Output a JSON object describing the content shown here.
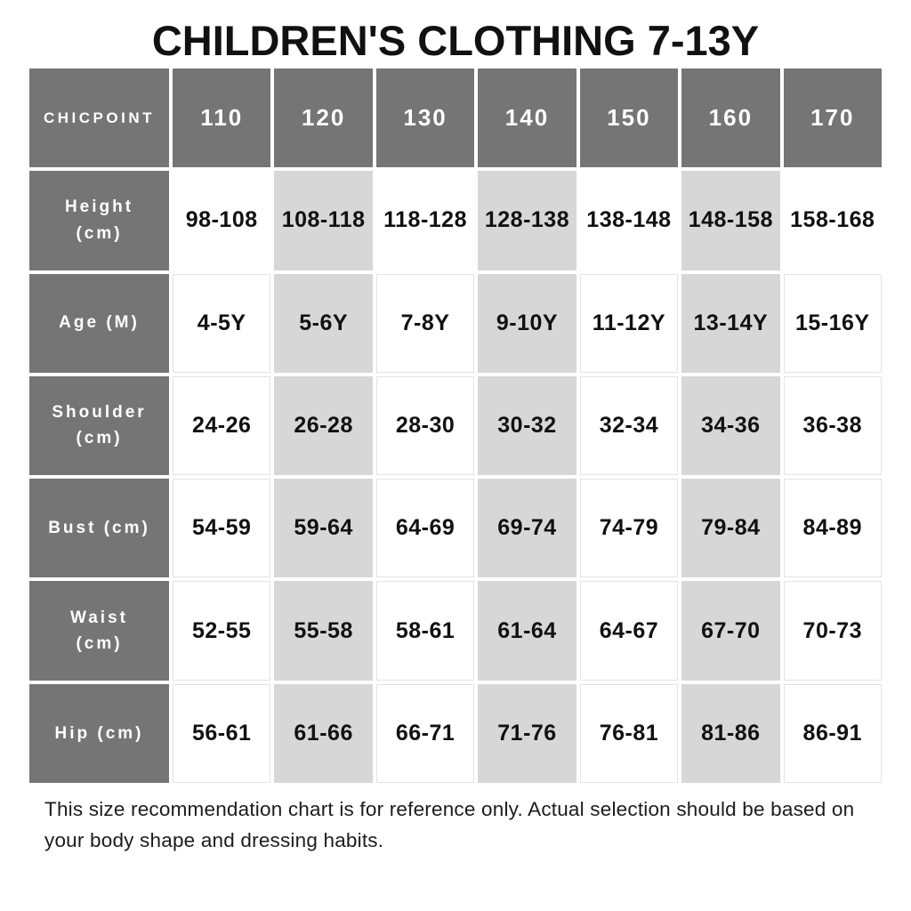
{
  "title": "CHILDREN'S CLOTHING 7-13Y",
  "chart_data": {
    "type": "table",
    "title": "CHILDREN'S CLOTHING 7-13Y",
    "corner_label": "CHICPOINT",
    "columns": [
      "110",
      "120",
      "130",
      "140",
      "150",
      "160",
      "170"
    ],
    "rows": [
      {
        "label": "Height (cm)",
        "values": [
          "98-108",
          "108-118",
          "118-128",
          "128-138",
          "138-148",
          "148-158",
          "158-168"
        ]
      },
      {
        "label": "Age (M)",
        "values": [
          "4-5Y",
          "5-6Y",
          "7-8Y",
          "9-10Y",
          "11-12Y",
          "13-14Y",
          "15-16Y"
        ]
      },
      {
        "label": "Shoulder (cm)",
        "values": [
          "24-26",
          "26-28",
          "28-30",
          "30-32",
          "32-34",
          "34-36",
          "36-38"
        ]
      },
      {
        "label": "Bust (cm)",
        "values": [
          "54-59",
          "59-64",
          "64-69",
          "69-74",
          "74-79",
          "79-84",
          "84-89"
        ]
      },
      {
        "label": "Waist (cm)",
        "values": [
          "52-55",
          "55-58",
          "58-61",
          "61-64",
          "64-67",
          "67-70",
          "70-73"
        ]
      },
      {
        "label": "Hip (cm)",
        "values": [
          "56-61",
          "61-66",
          "66-71",
          "71-76",
          "76-81",
          "81-86",
          "86-91"
        ]
      }
    ],
    "striped_columns": [
      "120",
      "140",
      "160"
    ],
    "layout": "grid-table, dark header row and label column, alternating light-gray data columns"
  },
  "footer": "This size recommendation chart is for reference only. Actual selection should be based on your body shape and dressing habits.",
  "colors": {
    "header_bg": "#757575",
    "header_text": "#ffffff",
    "stripe_bg": "#d7d7d7",
    "cell_border": "#e3e3e3",
    "body_text": "#111111"
  }
}
